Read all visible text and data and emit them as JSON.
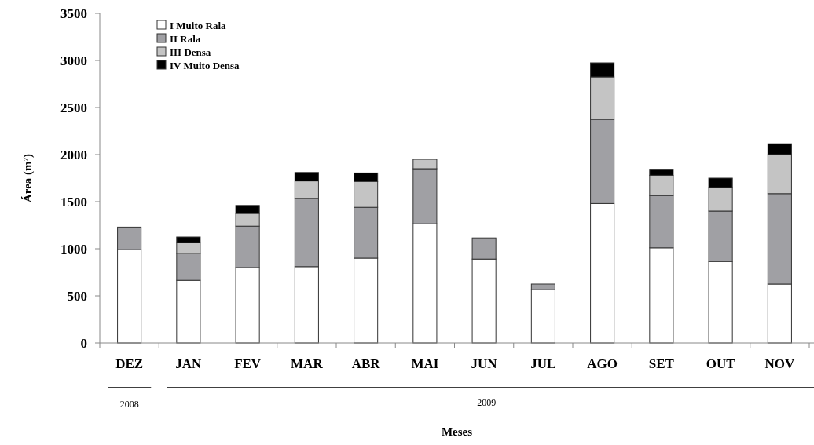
{
  "chart_data": {
    "type": "bar",
    "stacked": true,
    "xlabel": "Meses",
    "ylabel": "Área (m²)",
    "categories": [
      "DEZ",
      "JAN",
      "FEV",
      "MAR",
      "ABR",
      "MAI",
      "JUN",
      "JUL",
      "AGO",
      "SET",
      "OUT",
      "NOV"
    ],
    "series": [
      {
        "name": "I Muito Rala",
        "color": "#ffffff",
        "values": [
          990,
          665,
          800,
          810,
          900,
          1265,
          890,
          565,
          1480,
          1010,
          865,
          625
        ]
      },
      {
        "name": "II Rala",
        "color": "#a0a0a4",
        "values": [
          240,
          285,
          440,
          725,
          540,
          585,
          225,
          60,
          895,
          555,
          535,
          960
        ]
      },
      {
        "name": "III Densa",
        "color": "#c4c4c4",
        "values": [
          null,
          115,
          135,
          185,
          275,
          100,
          null,
          null,
          450,
          215,
          250,
          415
        ]
      },
      {
        "name": "IV Muito Densa",
        "color": "#000000",
        "values": [
          null,
          60,
          85,
          90,
          90,
          null,
          null,
          null,
          150,
          65,
          100,
          115
        ]
      }
    ],
    "ylim": [
      0,
      3500
    ],
    "yticks": [
      0,
      500,
      1000,
      1500,
      2000,
      2500,
      3000,
      3500
    ],
    "grid": false,
    "legend": "top left",
    "annotations": [
      "2008",
      "2009"
    ]
  }
}
